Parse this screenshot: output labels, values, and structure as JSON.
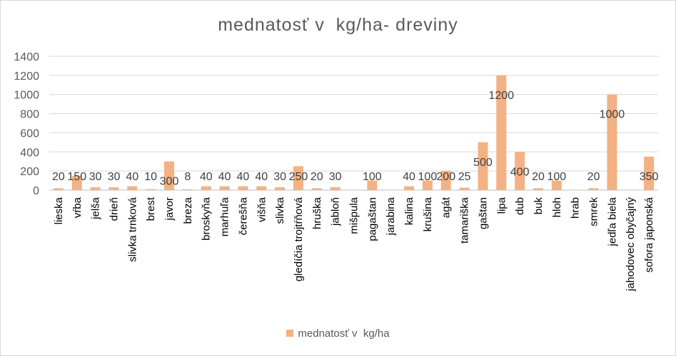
{
  "chart_data": {
    "type": "bar",
    "title": "mednatosť v  kg/ha- dreviny",
    "color": "#f4b183",
    "ylim": [
      0,
      1400
    ],
    "yticks": [
      0,
      200,
      400,
      600,
      800,
      1000,
      1200,
      1400
    ],
    "grid": true,
    "legend_position": "bottom",
    "categories": [
      "lieska",
      "vŕba",
      "jelša",
      "drieň",
      "slivka trnková",
      "brest",
      "javor",
      "breza",
      "broskyňa",
      "marhuľa",
      "čerešňa",
      "višňa",
      "slivka",
      "gledíčia trojtŕňová",
      "hruška",
      "jabloň",
      "mišpula",
      "pagaštan",
      "jarabina",
      "kalina",
      "krušina",
      "agát",
      "tamariška",
      "gaštan",
      "lipa",
      "dub",
      "buk",
      "hloh",
      "hrab",
      "smrek",
      "jedľa biela",
      "jahodovec obyčajný",
      "sofora japonská"
    ],
    "series": [
      {
        "name": "mednatosť v  kg/ha",
        "values": [
          20,
          150,
          30,
          30,
          40,
          10,
          300,
          8,
          40,
          40,
          40,
          40,
          30,
          250,
          20,
          30,
          0,
          100,
          0,
          40,
          100,
          200,
          25,
          500,
          1200,
          400,
          20,
          100,
          0,
          20,
          1000,
          0,
          350
        ],
        "data_labels": [
          "20",
          "150",
          "30",
          "30",
          "40",
          "10",
          "300",
          "8",
          "40",
          "40",
          "40",
          "40",
          "30",
          "250",
          "20",
          "30",
          "",
          "100",
          "",
          "40",
          "100",
          "200",
          "25",
          "500",
          "1200",
          "400",
          "20",
          "100",
          "",
          "20",
          "1000",
          "",
          "350"
        ]
      }
    ]
  }
}
